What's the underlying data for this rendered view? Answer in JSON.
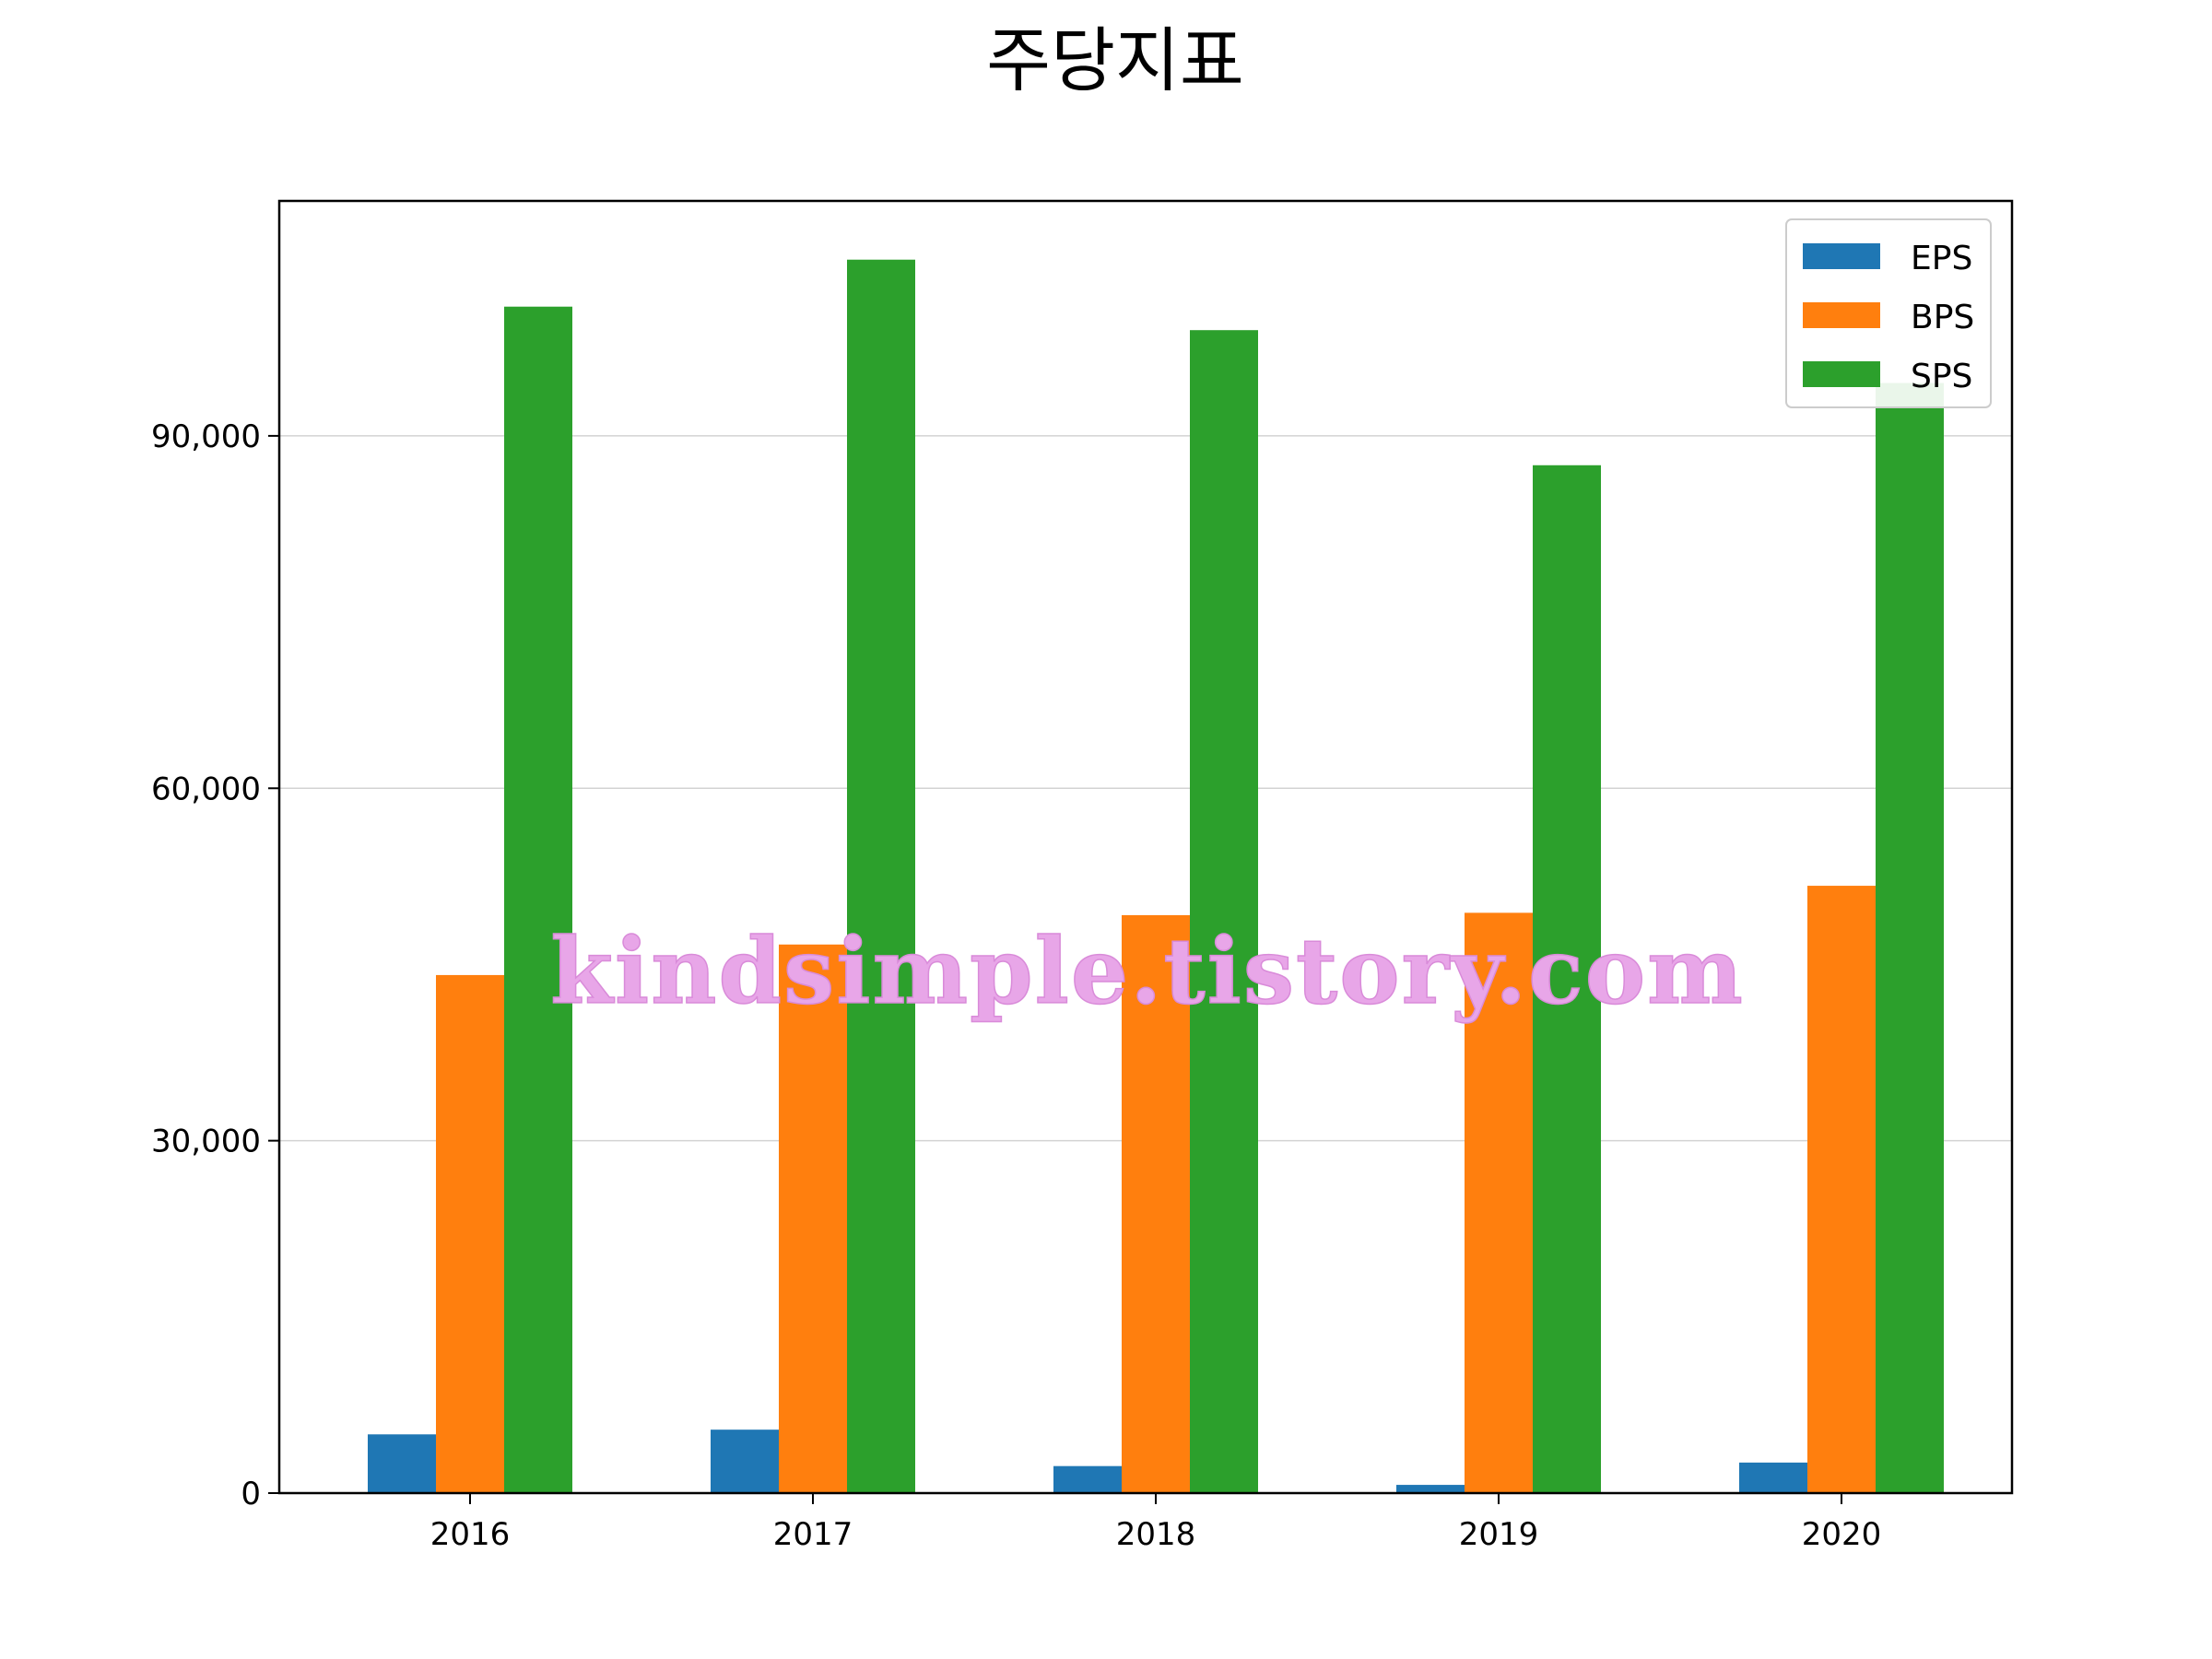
{
  "chart_data": {
    "type": "bar",
    "title": "주당지표",
    "xlabel": "",
    "ylabel": "",
    "categories": [
      "2016",
      "2017",
      "2018",
      "2019",
      "2020"
    ],
    "series": [
      {
        "name": "EPS",
        "color": "#1f77b4",
        "values": [
          5000,
          5400,
          2300,
          700,
          2600
        ]
      },
      {
        "name": "BPS",
        "color": "#ff7f0e",
        "values": [
          44100,
          46700,
          49200,
          49400,
          51700
        ]
      },
      {
        "name": "SPS",
        "color": "#2ca02c",
        "values": [
          101000,
          105000,
          99000,
          87500,
          94500
        ]
      }
    ],
    "ylim": [
      0,
      110000
    ],
    "yticks": [
      0,
      30000,
      60000,
      90000
    ],
    "ytick_labels": [
      "0",
      "30,000",
      "60,000",
      "90,000"
    ],
    "grid": "horizontal",
    "legend": "top-right"
  },
  "watermark": "kindsimple.tistory.com"
}
